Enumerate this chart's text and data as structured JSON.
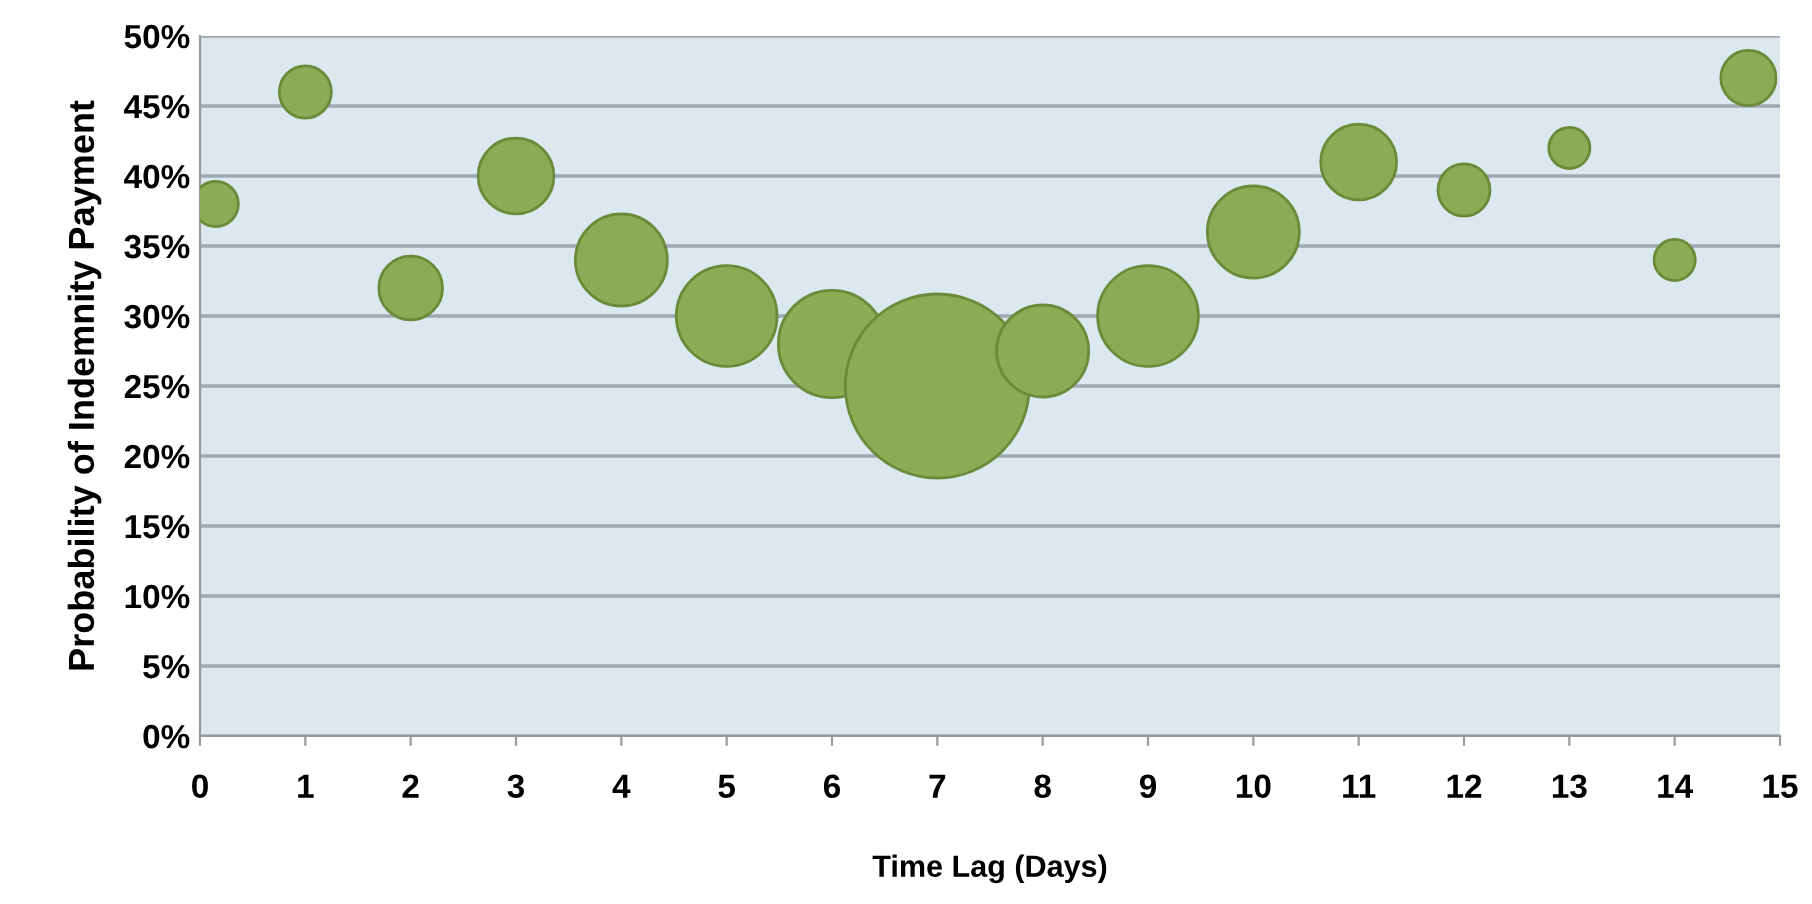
{
  "chart_data": {
    "type": "bubble",
    "xlabel": "Time Lag (Days)",
    "ylabel": "Probability of Indemnity Payment",
    "x": [
      0.15,
      1,
      2,
      3,
      4,
      5,
      6,
      7,
      8,
      9,
      10,
      11,
      12,
      13,
      14,
      14.7
    ],
    "values": [
      38,
      46,
      32,
      40,
      34,
      30,
      28,
      25,
      27.5,
      30,
      36,
      41,
      39,
      42,
      34,
      47
    ],
    "sizes": [
      0.06,
      0.08,
      0.12,
      0.17,
      0.25,
      0.3,
      0.34,
      1,
      0.25,
      0.3,
      0.25,
      0.17,
      0.08,
      0.05,
      0.05,
      0.09
    ],
    "color": "#8faa55",
    "xlim": [
      0,
      15
    ],
    "xticks": [
      0,
      1,
      2,
      3,
      4,
      5,
      6,
      7,
      8,
      9,
      10,
      11,
      12,
      13,
      14,
      15
    ],
    "ylim": [
      0,
      50
    ],
    "yticks": [
      {
        "value": 0,
        "label": "0%"
      },
      {
        "value": 5,
        "label": "5%"
      },
      {
        "value": 10,
        "label": "10%"
      },
      {
        "value": 15,
        "label": "15%"
      },
      {
        "value": 20,
        "label": "20%"
      },
      {
        "value": 25,
        "label": "25%"
      },
      {
        "value": 30,
        "label": "30%"
      },
      {
        "value": 35,
        "label": "35%"
      },
      {
        "value": 40,
        "label": "40%"
      },
      {
        "value": 45,
        "label": "45%"
      },
      {
        "value": 50,
        "label": "50%"
      }
    ],
    "grid": "y"
  }
}
